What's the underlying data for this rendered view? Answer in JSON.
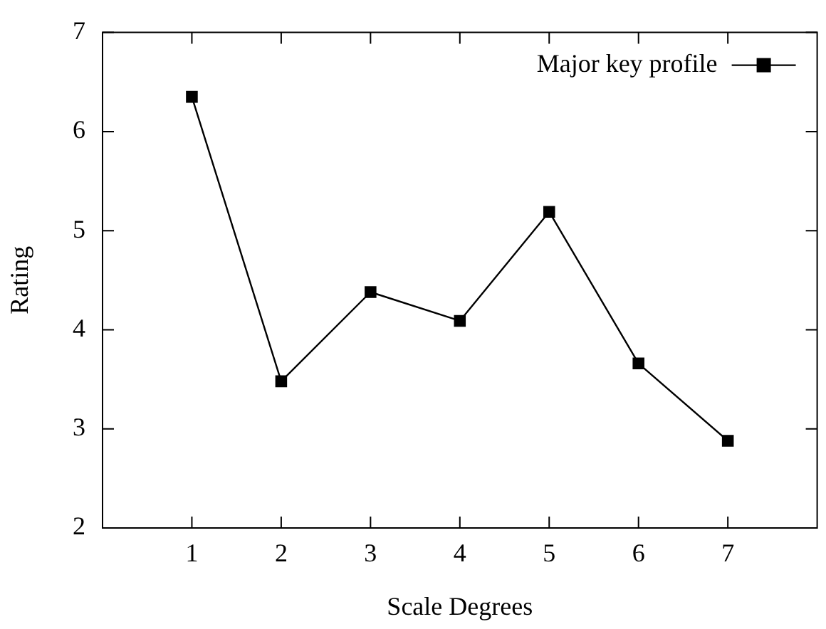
{
  "chart_data": {
    "type": "line",
    "xlabel": "Scale Degrees",
    "ylabel": "Rating",
    "x": [
      1,
      2,
      3,
      4,
      5,
      6,
      7
    ],
    "series": [
      {
        "name": "Major key profile",
        "color": "#000000",
        "values": [
          6.35,
          3.48,
          4.38,
          4.09,
          5.19,
          3.66,
          2.88
        ]
      }
    ],
    "xlim": [
      0,
      8
    ],
    "xticks": [
      1,
      2,
      3,
      4,
      5,
      6,
      7
    ],
    "ylim": [
      2,
      7
    ],
    "yticks": [
      2,
      3,
      4,
      5,
      6,
      7
    ],
    "grid": false,
    "legend": "top right",
    "marker": "square",
    "line_style": "solid"
  }
}
